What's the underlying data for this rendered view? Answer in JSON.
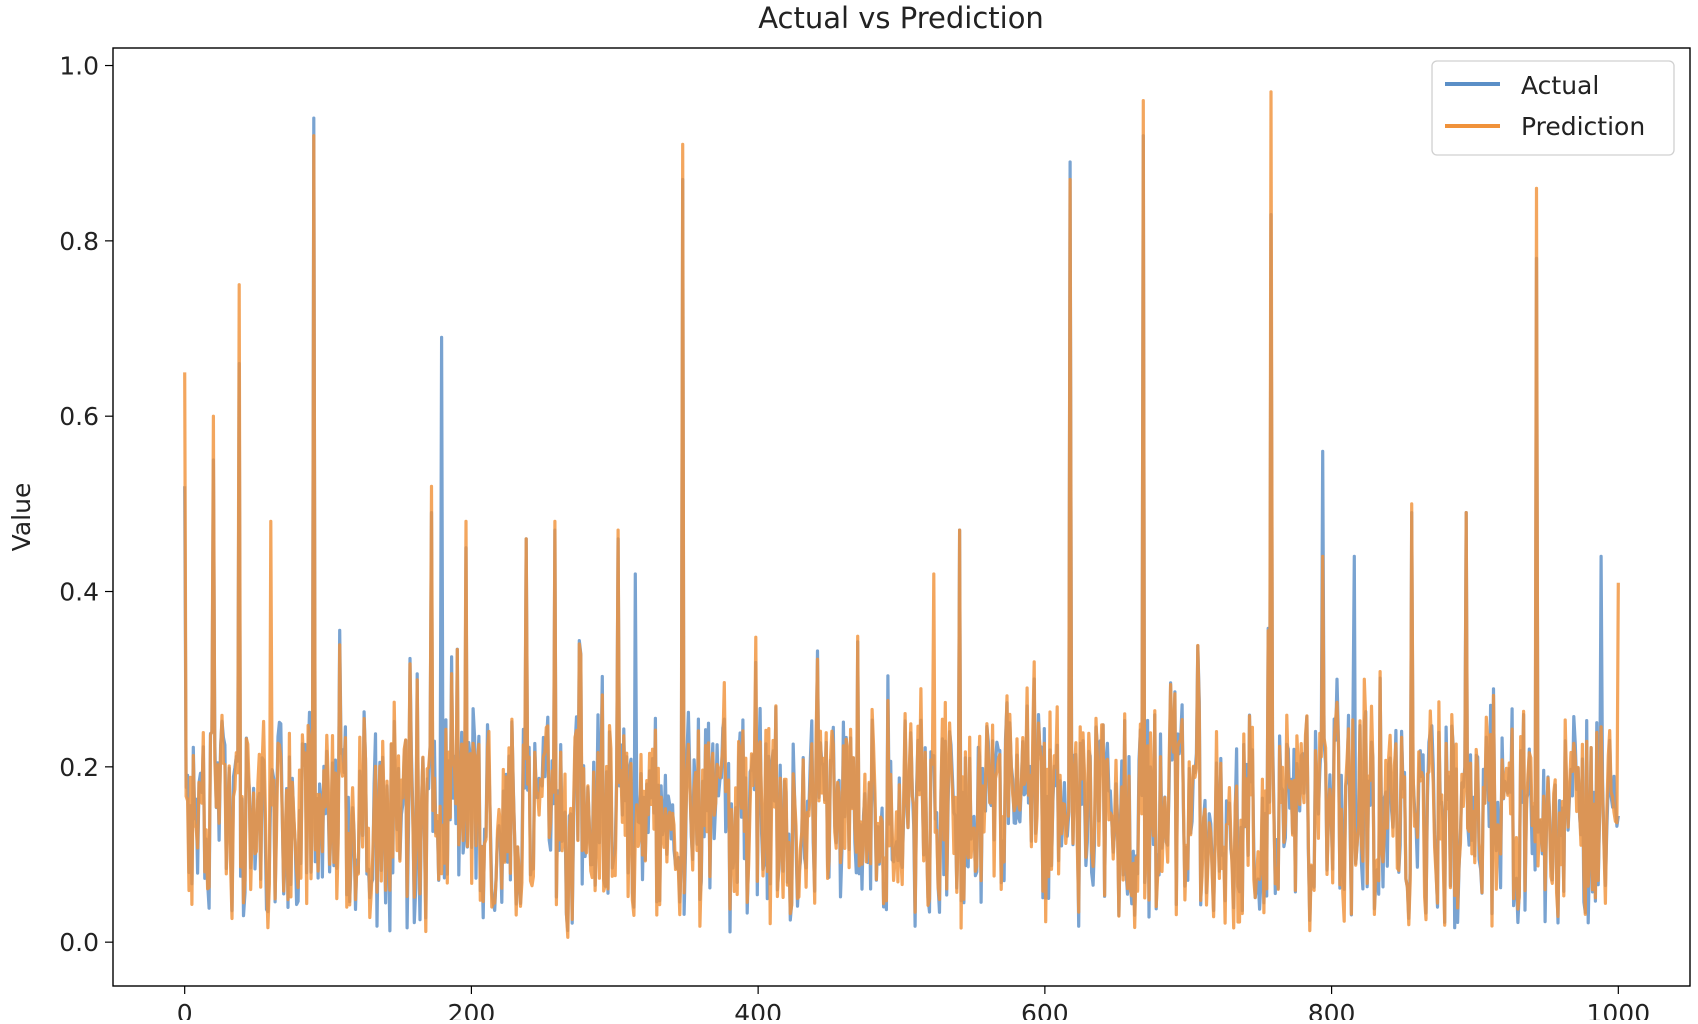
{
  "chart_data": {
    "type": "line",
    "title": "Actual vs Prediction",
    "xlabel": "",
    "ylabel": "Value",
    "xlim": [
      -50,
      1050
    ],
    "ylim": [
      -0.05,
      1.02
    ],
    "x_ticks": [
      0,
      200,
      400,
      600,
      800,
      1000
    ],
    "x_tick_labels": [
      "0",
      "200",
      "400",
      "600",
      "800",
      "1000"
    ],
    "y_ticks": [
      0.0,
      0.2,
      0.4,
      0.6,
      0.8,
      1.0
    ],
    "y_tick_labels": [
      "0.0",
      "0.2",
      "0.4",
      "0.6",
      "0.8",
      "1.0"
    ],
    "grid": false,
    "legend_position": "top-right",
    "n_points": 1000,
    "series": [
      {
        "name": "Actual",
        "color": "#5b8fc7",
        "baseline": 0.16,
        "noise_amplitude": 0.11,
        "peaks": [
          [
            0,
            0.52
          ],
          [
            20,
            0.55
          ],
          [
            38,
            0.66
          ],
          [
            90,
            0.94
          ],
          [
            172,
            0.49
          ],
          [
            179,
            0.69
          ],
          [
            196,
            0.45
          ],
          [
            238,
            0.46
          ],
          [
            258,
            0.47
          ],
          [
            302,
            0.46
          ],
          [
            314,
            0.42
          ],
          [
            347,
            0.87
          ],
          [
            540,
            0.47
          ],
          [
            617,
            0.89
          ],
          [
            668,
            0.92
          ],
          [
            757,
            0.83
          ],
          [
            793,
            0.56
          ],
          [
            815,
            0.44
          ],
          [
            855,
            0.49
          ],
          [
            893,
            0.49
          ],
          [
            942,
            0.78
          ],
          [
            987,
            0.44
          ]
        ]
      },
      {
        "name": "Prediction",
        "color": "#f0923a",
        "baseline": 0.16,
        "noise_amplitude": 0.11,
        "peaks": [
          [
            0,
            0.65
          ],
          [
            20,
            0.6
          ],
          [
            38,
            0.75
          ],
          [
            60,
            0.48
          ],
          [
            90,
            0.92
          ],
          [
            172,
            0.52
          ],
          [
            196,
            0.48
          ],
          [
            238,
            0.46
          ],
          [
            258,
            0.48
          ],
          [
            302,
            0.47
          ],
          [
            347,
            0.91
          ],
          [
            522,
            0.42
          ],
          [
            540,
            0.47
          ],
          [
            617,
            0.87
          ],
          [
            668,
            0.96
          ],
          [
            757,
            0.97
          ],
          [
            793,
            0.44
          ],
          [
            855,
            0.5
          ],
          [
            893,
            0.49
          ],
          [
            942,
            0.86
          ],
          [
            1000,
            0.41
          ]
        ]
      }
    ]
  }
}
